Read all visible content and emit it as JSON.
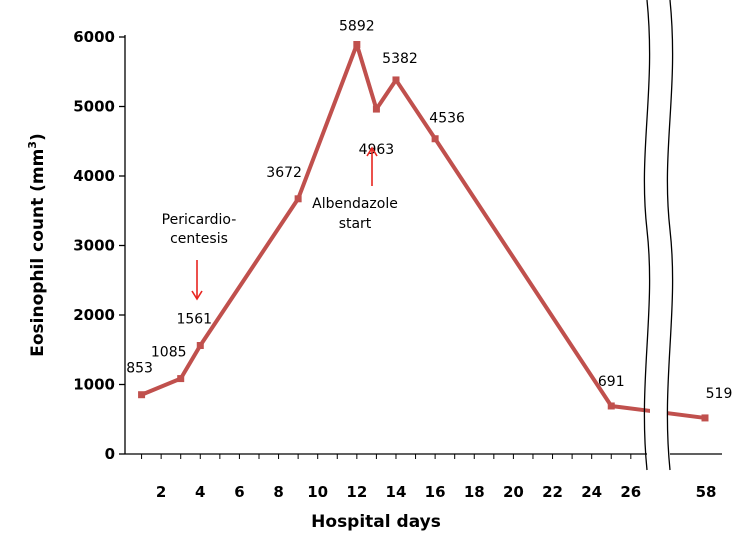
{
  "chart_data": {
    "type": "line",
    "xlabel": "Hospital days",
    "ylabel": "Eosinophil count (mm3)",
    "ylabel_main": "Eosinophil  count (mm",
    "ylabel_sup": "3",
    "ylabel_close": ")",
    "ylim": [
      0,
      6000
    ],
    "y_ticks": [
      0,
      1000,
      2000,
      3000,
      4000,
      5000,
      6000
    ],
    "y_tick_labels": [
      "0",
      "1000",
      "2000",
      "3000",
      "4000",
      "5000",
      "6000"
    ],
    "x_ticks": [
      2,
      4,
      6,
      8,
      10,
      12,
      14,
      16,
      18,
      20,
      22,
      24,
      26,
      58
    ],
    "x_tick_labels": [
      "2",
      "4",
      "6",
      "8",
      "10",
      "12",
      "14",
      "16",
      "18",
      "20",
      "22",
      "24",
      "26",
      "58"
    ],
    "x_axis_break": true,
    "grid": false,
    "series": [
      {
        "color": "#c0504d",
        "points": [
          {
            "x": 1,
            "y": 853,
            "label": "853"
          },
          {
            "x": 3,
            "y": 1085,
            "label": "1085"
          },
          {
            "x": 4,
            "y": 1561,
            "label": "1561"
          },
          {
            "x": 9,
            "y": 3672,
            "label": "3672"
          },
          {
            "x": 12,
            "y": 5892,
            "label": "5892"
          },
          {
            "x": 13,
            "y": 4963,
            "label": "4963"
          },
          {
            "x": 14,
            "y": 5382,
            "label": "5382"
          },
          {
            "x": 16,
            "y": 4536,
            "label": "4536"
          },
          {
            "x": 25,
            "y": 691,
            "label": "691"
          },
          {
            "x": 58,
            "y": 519,
            "label": "519"
          }
        ]
      }
    ],
    "annotations": [
      {
        "lines": [
          "Pericardio-",
          "centesis"
        ],
        "x": 4,
        "arrow": "down",
        "arrow_color": "#e8251f"
      },
      {
        "lines": [
          "Albendazole",
          "start"
        ],
        "x": 13,
        "arrow": "up",
        "arrow_color": "#e8251f"
      }
    ]
  }
}
